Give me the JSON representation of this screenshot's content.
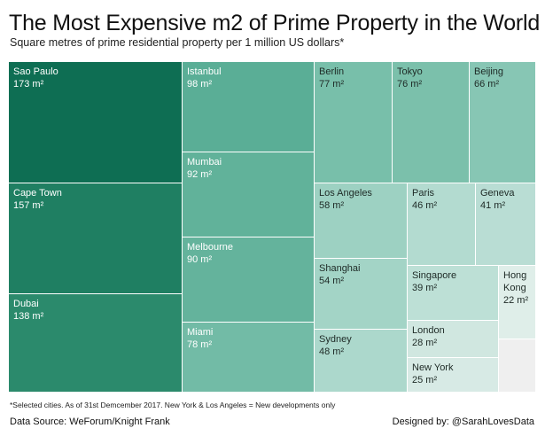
{
  "chart_data": {
    "type": "treemap",
    "title": "The Most Expensive m2 of Prime Property in the World",
    "subtitle": "Square metres of prime residential property per 1 million US dollars*",
    "unit": "m²",
    "items": [
      {
        "label": "Sao Paulo",
        "value": 173,
        "display": "173 m²",
        "color": "#0e6e53"
      },
      {
        "label": "Cape Town",
        "value": 157,
        "display": "157 m²",
        "color": "#1f7f62"
      },
      {
        "label": "Dubai",
        "value": 138,
        "display": "138 m²",
        "color": "#2b8a6c"
      },
      {
        "label": "Istanbul",
        "value": 98,
        "display": "98 m²",
        "color": "#5aae96"
      },
      {
        "label": "Mumbai",
        "value": 92,
        "display": "92 m²",
        "color": "#61b29a"
      },
      {
        "label": "Melbourne",
        "value": 90,
        "display": "90 m²",
        "color": "#64b39c"
      },
      {
        "label": "Miami",
        "value": 78,
        "display": "78 m²",
        "color": "#72bba6"
      },
      {
        "label": "Berlin",
        "value": 77,
        "display": "77 m²",
        "color": "#78bfaa"
      },
      {
        "label": "Tokyo",
        "value": 76,
        "display": "76 m²",
        "color": "#7bc0ab"
      },
      {
        "label": "Beijing",
        "value": 66,
        "display": "66 m²",
        "color": "#87c6b4"
      },
      {
        "label": "Los Angeles",
        "value": 58,
        "display": "58 m²",
        "color": "#9dd1c2"
      },
      {
        "label": "Shanghai",
        "value": 54,
        "display": "54 m²",
        "color": "#a3d4c6"
      },
      {
        "label": "Sydney",
        "value": 48,
        "display": "48 m²",
        "color": "#acd8cc"
      },
      {
        "label": "Paris",
        "value": 46,
        "display": "46 m²",
        "color": "#b3dbd0"
      },
      {
        "label": "Geneva",
        "value": 41,
        "display": "41 m²",
        "color": "#b9ddd4"
      },
      {
        "label": "Singapore",
        "value": 39,
        "display": "39 m²",
        "color": "#bde0d6"
      },
      {
        "label": "Hong Kong",
        "value": 22,
        "display": "22 m²",
        "color": "#dfeee9"
      },
      {
        "label": "London",
        "value": 28,
        "display": "28 m²",
        "color": "#d0e7e0"
      },
      {
        "label": "New York",
        "value": 25,
        "display": "25 m²",
        "color": "#d7eae5"
      }
    ]
  },
  "footnote": "*Selected cities. As of 31st Demcember 2017. New York & Los Angeles = New developments only",
  "source": "Data Source: WeForum/Knight Frank",
  "designer": "Designed by: @SarahLovesData"
}
